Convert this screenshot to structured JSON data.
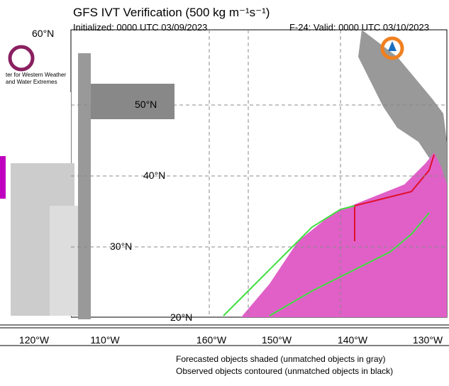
{
  "header": {
    "title": "GFS IVT Verification (500 kg m⁻¹s⁻¹)",
    "initialized": "Initialized: 0000 UTC 03/09/2023",
    "valid": "F-24: Valid: 0000 UTC 03/10/2023"
  },
  "logo": {
    "line1": "ter for Western Weather",
    "line2": "and Water Extremes"
  },
  "map": {
    "lat_labels": [
      "60°N",
      "50°N",
      "40°N",
      "30°N",
      "20°N"
    ],
    "lon_labels": [
      "120°W",
      "110°W",
      "160°W",
      "150°W",
      "140°W",
      "130°W"
    ]
  },
  "notes": [
    "Forecasted objects shaded (unmatched objects in gray)",
    "Observed objects contoured (unmatched objects in black)"
  ]
}
